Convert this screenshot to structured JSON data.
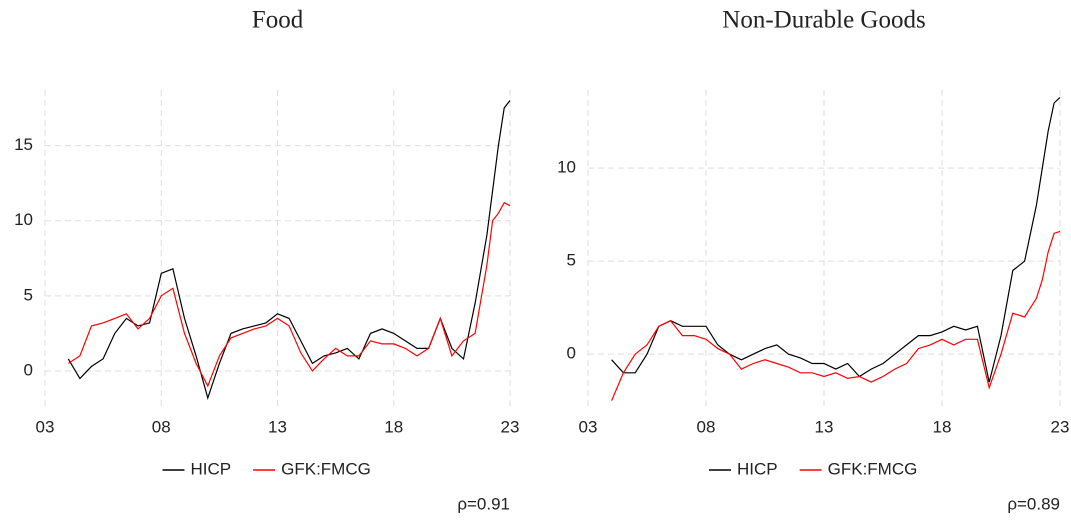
{
  "chart_data": [
    {
      "type": "line",
      "title": "Food",
      "x": [
        4,
        4.5,
        5,
        5.5,
        6,
        6.5,
        7,
        7.5,
        8,
        8.5,
        9,
        9.5,
        10,
        10.5,
        11,
        11.5,
        12,
        12.5,
        13,
        13.5,
        14,
        14.5,
        15,
        15.5,
        16,
        16.5,
        17,
        17.5,
        18,
        18.5,
        19,
        19.5,
        20,
        20.5,
        21,
        21.5,
        22,
        22.25,
        22.5,
        22.75,
        23
      ],
      "series": [
        {
          "name": "HICP",
          "color": "#000000",
          "values": [
            0.8,
            -0.5,
            0.3,
            0.8,
            2.5,
            3.5,
            3.0,
            3.2,
            6.5,
            6.8,
            3.5,
            1.0,
            -1.8,
            0.5,
            2.5,
            2.8,
            3.0,
            3.2,
            3.8,
            3.5,
            2.0,
            0.5,
            1.0,
            1.2,
            1.5,
            0.8,
            2.5,
            2.8,
            2.5,
            2.0,
            1.5,
            1.5,
            3.5,
            1.5,
            0.8,
            4.5,
            9,
            12,
            15,
            17.5,
            18
          ]
        },
        {
          "name": "GFK:FMCG",
          "color": "#ff0000",
          "values": [
            0.5,
            1.0,
            3.0,
            3.2,
            3.5,
            3.8,
            2.8,
            3.5,
            5.0,
            5.5,
            2.5,
            0.5,
            -1.0,
            1.0,
            2.2,
            2.5,
            2.8,
            3.0,
            3.5,
            3.0,
            1.2,
            0.0,
            0.8,
            1.5,
            1.0,
            1.0,
            2.0,
            1.8,
            1.8,
            1.5,
            1.0,
            1.5,
            3.5,
            1.0,
            2.0,
            2.5,
            7,
            10,
            10.5,
            11.2,
            11
          ]
        }
      ],
      "xlim": [
        3,
        23
      ],
      "xticks": [
        {
          "value": 3,
          "label": "03"
        },
        {
          "value": 8,
          "label": "08"
        },
        13,
        18,
        23
      ],
      "ylim": [
        -2.6,
        18.7
      ],
      "yticks": [
        0,
        5,
        10,
        15
      ],
      "grid": true,
      "annotation": "ρ=0.91"
    },
    {
      "type": "line",
      "title": "Non-Durable Goods",
      "x": [
        4,
        4.5,
        5,
        5.5,
        6,
        6.5,
        7,
        7.5,
        8,
        8.5,
        9,
        9.5,
        10,
        10.5,
        11,
        11.5,
        12,
        12.5,
        13,
        13.5,
        14,
        14.5,
        15,
        15.5,
        16,
        16.5,
        17,
        17.5,
        18,
        18.5,
        19,
        19.5,
        20,
        20.5,
        21,
        21.5,
        22,
        22.25,
        22.5,
        22.75,
        23
      ],
      "series": [
        {
          "name": "HICP",
          "color": "#000000",
          "values": [
            -0.3,
            -1.0,
            -1.0,
            0.0,
            1.5,
            1.8,
            1.5,
            1.5,
            1.5,
            0.5,
            0.0,
            -0.3,
            0.0,
            0.3,
            0.5,
            0.0,
            -0.2,
            -0.5,
            -0.5,
            -0.8,
            -0.5,
            -1.2,
            -0.8,
            -0.5,
            0.0,
            0.5,
            1.0,
            1.0,
            1.2,
            1.5,
            1.3,
            1.5,
            -1.5,
            1.0,
            4.5,
            5.0,
            8,
            10,
            12,
            13.5,
            13.8
          ]
        },
        {
          "name": "GFK:FMCG",
          "color": "#ff0000",
          "values": [
            -2.5,
            -1.0,
            0.0,
            0.5,
            1.5,
            1.8,
            1.0,
            1.0,
            0.8,
            0.3,
            0.0,
            -0.8,
            -0.5,
            -0.3,
            -0.5,
            -0.7,
            -1.0,
            -1.0,
            -1.2,
            -1.0,
            -1.3,
            -1.2,
            -1.5,
            -1.2,
            -0.8,
            -0.5,
            0.3,
            0.5,
            0.8,
            0.5,
            0.8,
            0.8,
            -1.8,
            0.0,
            2.2,
            2.0,
            3,
            4,
            5.5,
            6.5,
            6.6
          ]
        }
      ],
      "xlim": [
        3,
        23
      ],
      "xticks": [
        {
          "value": 3,
          "label": "03"
        },
        {
          "value": 8,
          "label": "08"
        },
        13,
        18,
        23
      ],
      "ylim": [
        -3,
        14.2
      ],
      "yticks": [
        0,
        5,
        10
      ],
      "grid": true,
      "annotation": "ρ=0.89"
    }
  ]
}
